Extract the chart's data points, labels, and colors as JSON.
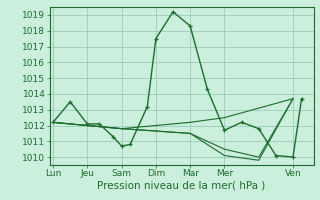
{
  "background_color": "#cceedd",
  "grid_color": "#99ccbb",
  "line_color": "#1a6e2a",
  "xlabel": "Pression niveau de la mer( hPa )",
  "xlabel_fontsize": 7.5,
  "ylabel_fontsize": 6.5,
  "xtick_fontsize": 6.5,
  "ylim": [
    1009.5,
    1019.5
  ],
  "yticks": [
    1010,
    1011,
    1012,
    1013,
    1014,
    1015,
    1016,
    1017,
    1018,
    1019
  ],
  "day_labels": [
    "Lun",
    "Jeu",
    "Sam",
    "Dim",
    "Mar",
    "Mer",
    "Ven"
  ],
  "day_positions": [
    0,
    2,
    4,
    6,
    8,
    10,
    14
  ],
  "xlim": [
    -0.2,
    15.2
  ],
  "series": [
    {
      "x": [
        0,
        1,
        2,
        2.7,
        3.5,
        4,
        4.5,
        5.5,
        6,
        7,
        8,
        9,
        10,
        11,
        12,
        13,
        14,
        14.5
      ],
      "y": [
        1012.2,
        1013.5,
        1012.1,
        1012.1,
        1011.3,
        1010.7,
        1010.8,
        1013.2,
        1017.5,
        1019.2,
        1018.3,
        1014.3,
        1011.7,
        1012.2,
        1011.8,
        1010.1,
        1010.0,
        1013.7
      ],
      "marker": true,
      "lw": 1.0
    },
    {
      "x": [
        0,
        4,
        8,
        10,
        14
      ],
      "y": [
        1012.2,
        1011.8,
        1012.2,
        1012.5,
        1013.7
      ],
      "marker": false,
      "lw": 0.8
    },
    {
      "x": [
        0,
        4,
        8,
        10,
        12,
        14
      ],
      "y": [
        1012.2,
        1011.8,
        1011.5,
        1010.5,
        1010.0,
        1013.7
      ],
      "marker": false,
      "lw": 0.8
    },
    {
      "x": [
        0,
        4,
        8,
        10,
        12,
        14
      ],
      "y": [
        1012.2,
        1011.8,
        1011.5,
        1010.1,
        1009.8,
        1013.7
      ],
      "marker": false,
      "lw": 0.8
    }
  ]
}
